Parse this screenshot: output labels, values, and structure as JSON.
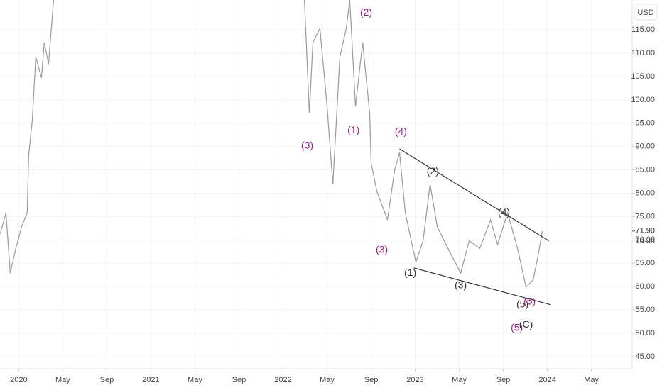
{
  "chart_data": {
    "type": "line",
    "currency": "USD",
    "x": [
      -1.68,
      -1.16,
      -0.77,
      -0.26,
      0.26,
      0.77,
      0.9,
      1.23,
      1.55,
      2.06,
      2.32,
      2.71,
      3.16,
      14,
      25.94,
      26.39,
      26.71,
      27.35,
      28,
      28.52,
      29.16,
      29.74,
      30.06,
      30.58,
      31.23,
      31.87,
      32,
      32.52,
      33.48,
      34.13,
      34.58,
      35.1,
      36.06,
      36.71,
      37.35,
      38,
      38.97,
      40.13,
      40.9,
      41.87,
      42.84,
      43.48,
      44.39,
      45.29,
      46.06,
      46.71,
      47.16,
      47.55
    ],
    "series": [
      {
        "color": "#9a9a9a",
        "values": [
          71.3,
          75.8,
          62.9,
          68.2,
          72.8,
          75.8,
          88,
          95.6,
          109.2,
          104.7,
          112.3,
          107.7,
          121.4,
          null,
          121.4,
          97.1,
          112.3,
          115.3,
          98.6,
          81.9,
          109.2,
          115.3,
          121.4,
          98.6,
          112.3,
          97.1,
          86.5,
          80.4,
          74.3,
          85,
          88.7,
          75.8,
          65.2,
          69.8,
          81.9,
          72.8,
          68.2,
          62.9,
          69.8,
          68.2,
          74.3,
          69,
          75.8,
          68.2,
          59.9,
          61.4,
          66.7,
          71.9
        ]
      }
    ],
    "xlim": [
      -1.7,
      55.7
    ],
    "ylim": [
      42.4,
      121.4
    ],
    "xticks": [
      {
        "value": 0,
        "label": "2020"
      },
      {
        "value": 4,
        "label": "May"
      },
      {
        "value": 8,
        "label": "Sep"
      },
      {
        "value": 12,
        "label": "2021"
      },
      {
        "value": 16,
        "label": "May"
      },
      {
        "value": 20,
        "label": "Sep"
      },
      {
        "value": 24,
        "label": "2022"
      },
      {
        "value": 28,
        "label": "May"
      },
      {
        "value": 32,
        "label": "Sep"
      },
      {
        "value": 36,
        "label": "2023"
      },
      {
        "value": 40,
        "label": "May"
      },
      {
        "value": 44,
        "label": "Sep"
      },
      {
        "value": 48,
        "label": "2024"
      },
      {
        "value": 52,
        "label": "May"
      }
    ],
    "yticks": [
      {
        "value": 45,
        "label": "45.00"
      },
      {
        "value": 50,
        "label": "50.00"
      },
      {
        "value": 55,
        "label": "55.00"
      },
      {
        "value": 60,
        "label": "60.00"
      },
      {
        "value": 65,
        "label": "65.00"
      },
      {
        "value": 70,
        "label": "70.00"
      },
      {
        "value": 75,
        "label": "75.00"
      },
      {
        "value": 80,
        "label": "80.00"
      },
      {
        "value": 85,
        "label": "85.00"
      },
      {
        "value": 90,
        "label": "90.00"
      },
      {
        "value": 95,
        "label": "95.00"
      },
      {
        "value": 100,
        "label": "100.00"
      },
      {
        "value": 105,
        "label": "105.00"
      },
      {
        "value": 110,
        "label": "110.00"
      },
      {
        "value": 115,
        "label": "115.00"
      }
    ],
    "grid": true,
    "last_price": {
      "value": 71.9,
      "label": "71.90"
    },
    "countdown": "1d 3h",
    "trendlines": [
      {
        "color": "#333333",
        "x": [
          34.58,
          48.13
        ],
        "y": [
          89.5,
          69.8
        ]
      },
      {
        "color": "#333333",
        "x": [
          35.87,
          48.32
        ],
        "y": [
          64,
          56.1
        ]
      }
    ],
    "annotations": [
      {
        "text": "(3)",
        "x": 26.2,
        "y": 90.1,
        "color": "#a0208e"
      },
      {
        "text": "(1)",
        "x": 30.4,
        "y": 93.4,
        "color": "#a0208e"
      },
      {
        "text": "(2)",
        "x": 31.55,
        "y": 118.6,
        "color": "#a0208e"
      },
      {
        "text": "(4)",
        "x": 34.7,
        "y": 93.1,
        "color": "#a0208e"
      },
      {
        "text": "(3)",
        "x": 32.97,
        "y": 67.8,
        "color": "#a0208e"
      },
      {
        "text": "(2)",
        "x": 37.6,
        "y": 84.6,
        "color": "#333333"
      },
      {
        "text": "(1)",
        "x": 35.55,
        "y": 62.9,
        "color": "#333333"
      },
      {
        "text": "(3)",
        "x": 40.13,
        "y": 60.2,
        "color": "#333333"
      },
      {
        "text": "(4)",
        "x": 44.06,
        "y": 75.8,
        "color": "#333333"
      },
      {
        "text": "(5)",
        "x": 45.74,
        "y": 56.1,
        "color": "#333333"
      },
      {
        "text": "(5)",
        "x": 46.39,
        "y": 56.7,
        "color": "#a0208e"
      },
      {
        "text": "(5)",
        "x": 45.23,
        "y": 51.1,
        "color": "#a0208e"
      },
      {
        "text": "(C)",
        "x": 46.06,
        "y": 51.8,
        "color": "#333333"
      }
    ]
  }
}
